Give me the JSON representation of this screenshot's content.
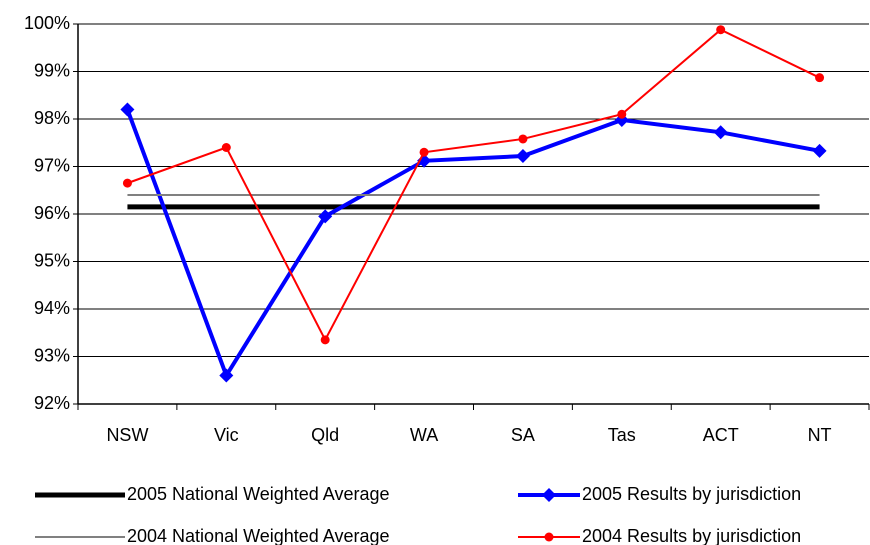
{
  "chart_data": {
    "type": "line",
    "categories": [
      "NSW",
      "Vic",
      "Qld",
      "WA",
      "SA",
      "Tas",
      "ACT",
      "NT"
    ],
    "series": [
      {
        "name": "2005 National Weighted Average",
        "color": "#000000",
        "marker": null,
        "values": [
          96.15,
          96.15,
          96.15,
          96.15,
          96.15,
          96.15,
          96.15,
          96.15
        ]
      },
      {
        "name": "2005 Results by jurisdiction",
        "color": "#0000ff",
        "marker": "diamond",
        "values": [
          98.2,
          92.6,
          95.95,
          97.12,
          97.22,
          97.98,
          97.72,
          97.33
        ]
      },
      {
        "name": "2004 National Weighted Average",
        "color": "#808080",
        "marker": null,
        "values": [
          96.4,
          96.4,
          96.4,
          96.4,
          96.4,
          96.4,
          96.4,
          96.4
        ]
      },
      {
        "name": "2004 Results by jurisdiction",
        "color": "#ff0000",
        "marker": "circle",
        "values": [
          96.65,
          97.4,
          93.35,
          97.3,
          97.58,
          98.1,
          99.88,
          98.87
        ]
      }
    ],
    "ylim": [
      92,
      100
    ],
    "yticks": [
      {
        "value": 92,
        "label": "92%"
      },
      {
        "value": 93,
        "label": "93%"
      },
      {
        "value": 94,
        "label": "94%"
      },
      {
        "value": 95,
        "label": "95%"
      },
      {
        "value": 96,
        "label": "96%"
      },
      {
        "value": 97,
        "label": "97%"
      },
      {
        "value": 98,
        "label": "98%"
      },
      {
        "value": 99,
        "label": "99%"
      },
      {
        "value": 100,
        "label": "100%"
      }
    ],
    "grid": true
  }
}
